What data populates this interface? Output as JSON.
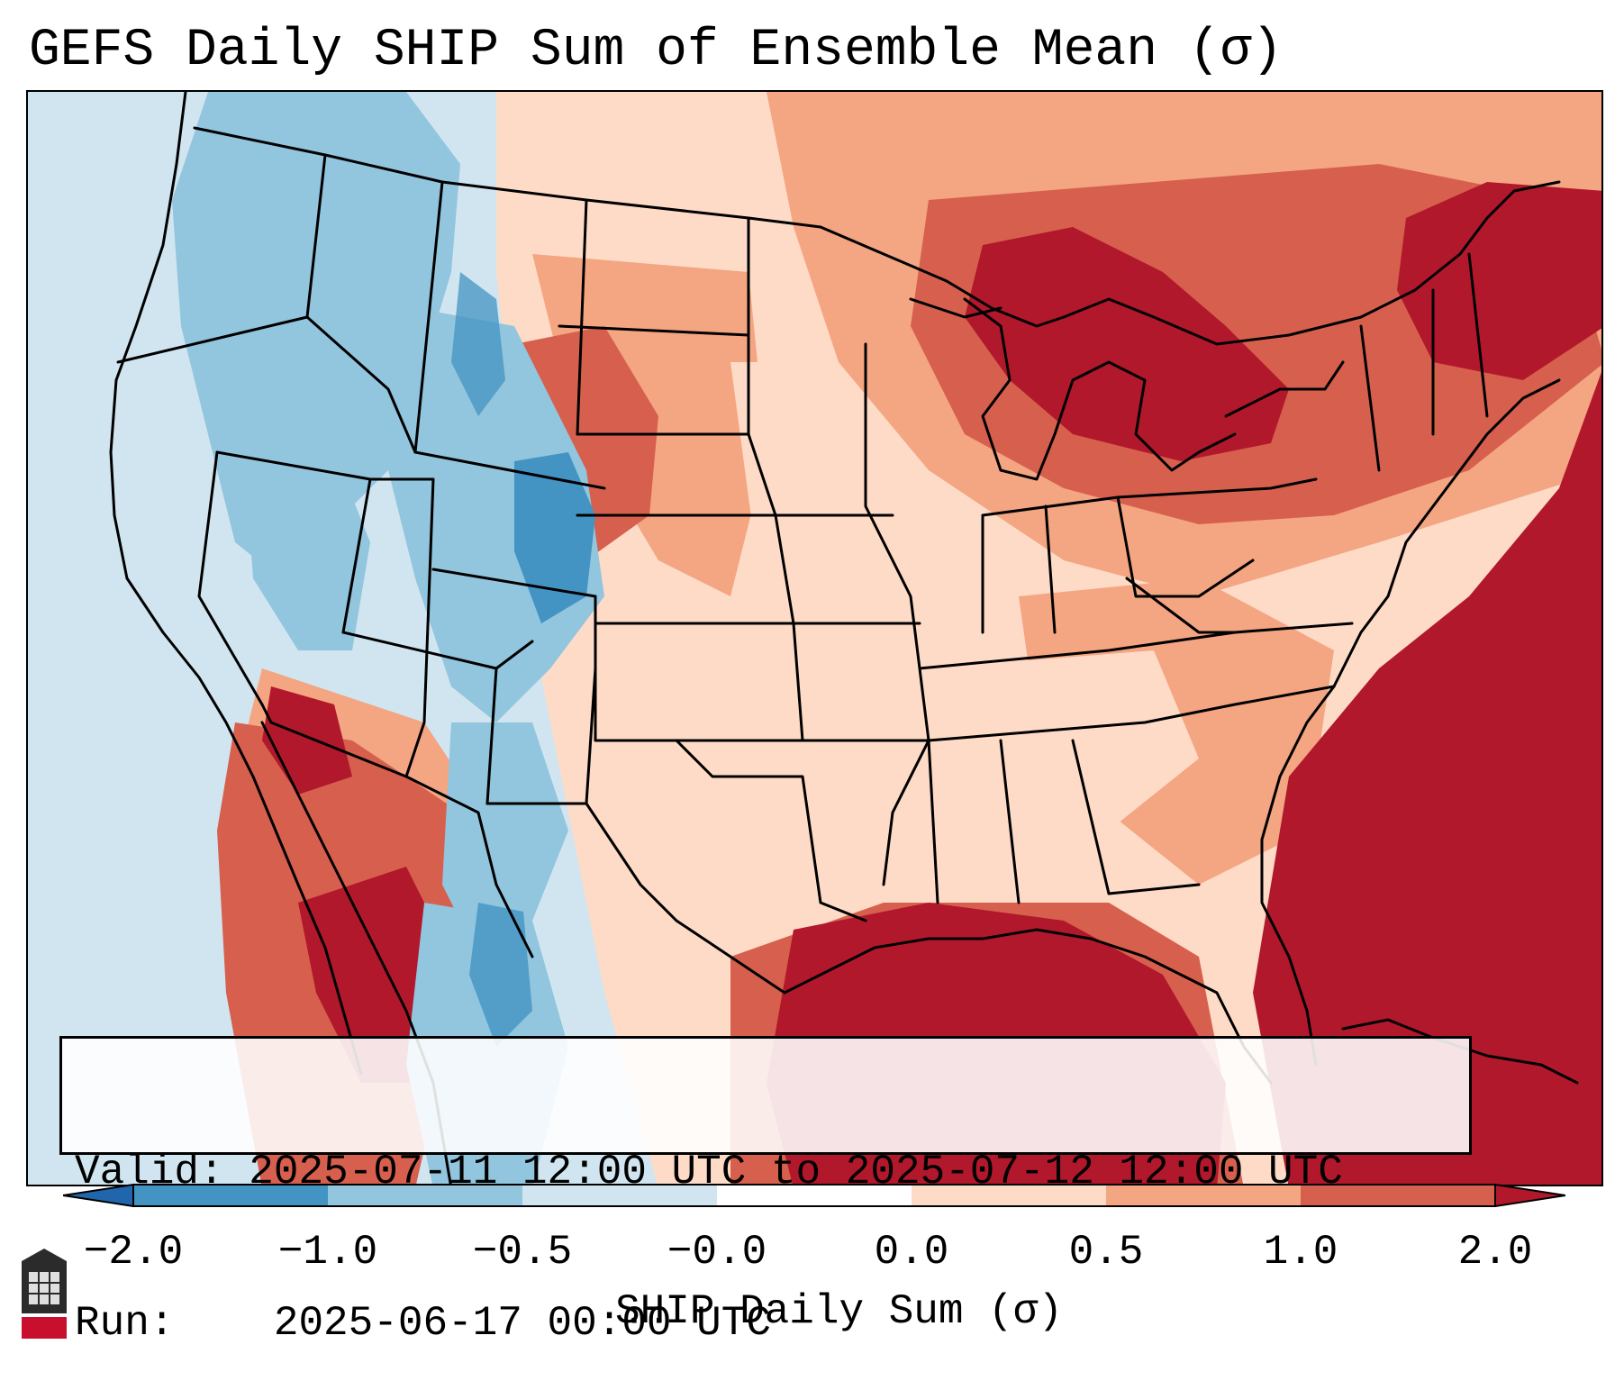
{
  "title": "GEFS Daily SHIP Sum of Ensemble Mean (σ)",
  "info": {
    "valid_label": "Valid:",
    "valid_value": "2025-07-11 12:00 UTC to 2025-07-12 12:00 UTC",
    "run_label": "Run:",
    "run_value": "2025-06-17 00:00 UTC"
  },
  "colorbar": {
    "label": "SHIP Daily Sum (σ)",
    "tick_labels": [
      "−2.0",
      "−1.0",
      "−0.5",
      "−0.0",
      "0.0",
      "0.5",
      "1.0",
      "2.0"
    ],
    "bins": [
      {
        "range": "< -2.0",
        "color": "#2166ac"
      },
      {
        "range": "-2.0 to -1.0",
        "color": "#4393c3"
      },
      {
        "range": "-1.0 to -0.5",
        "color": "#92c5de"
      },
      {
        "range": "-0.5 to -0.0",
        "color": "#d1e5f0"
      },
      {
        "range": "-0.0 to 0.0",
        "color": "#ffffff"
      },
      {
        "range": "0.0 to 0.5",
        "color": "#fddbc7"
      },
      {
        "range": "0.5 to 1.0",
        "color": "#f4a582"
      },
      {
        "range": "1.0 to 2.0",
        "color": "#d6604d"
      },
      {
        "range": "> 2.0",
        "color": "#b2182b"
      }
    ]
  },
  "map": {
    "region": "Contiguous United States and surroundings",
    "logo": "NIU"
  }
}
